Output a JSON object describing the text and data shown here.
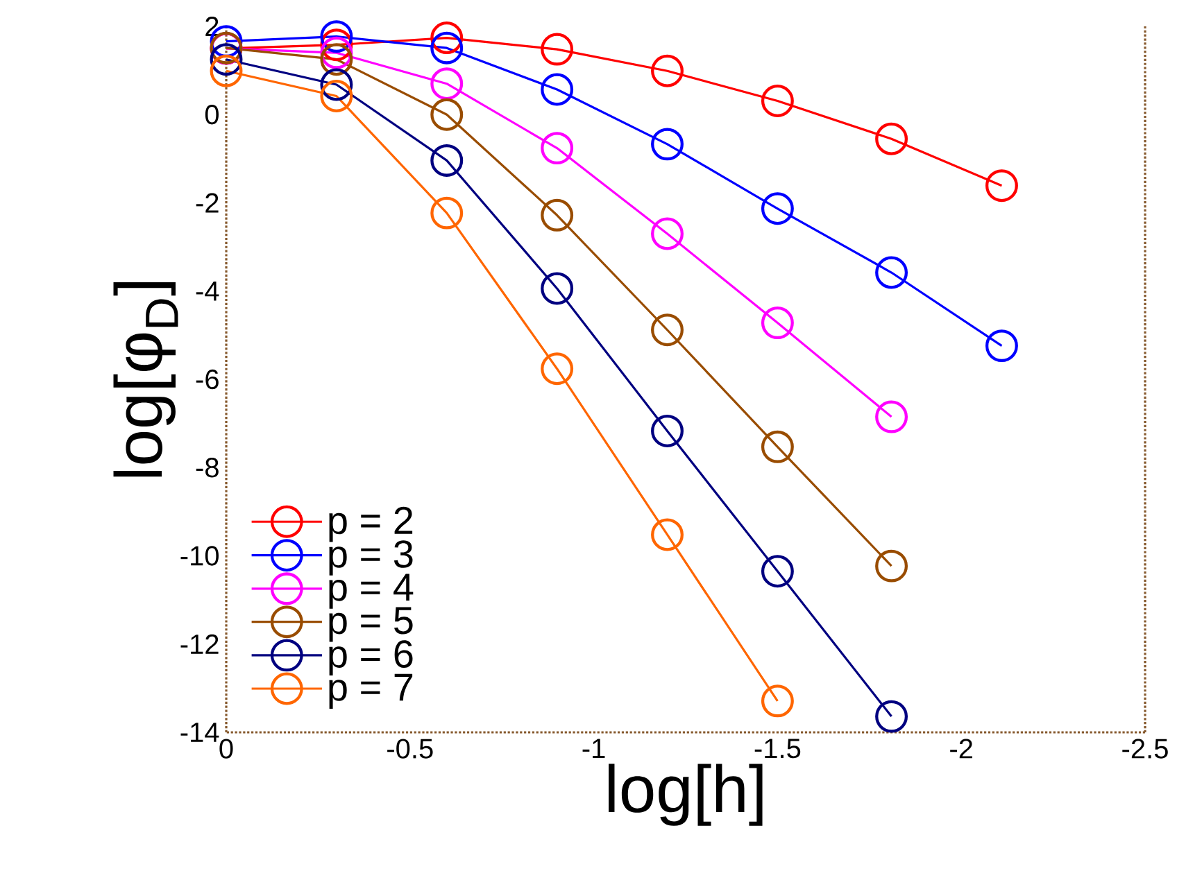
{
  "chart_data": {
    "type": "line",
    "xlabel": "log[h]",
    "ylabel": "log[φ$_{D}$]",
    "xlim": [
      0,
      -2.5
    ],
    "ylim": [
      -14,
      2
    ],
    "xticks": [
      0,
      -0.5,
      -1,
      -1.5,
      -2,
      -2.5
    ],
    "yticks": [
      2,
      0,
      -2,
      -4,
      -6,
      -8,
      -10,
      -12,
      -14
    ],
    "x": [
      0,
      -0.3,
      -0.6,
      -0.9,
      -1.2,
      -1.5,
      -1.81,
      -2.11
    ],
    "marker": "circle",
    "line_style": "solid",
    "grid": false,
    "legend": "bottom left",
    "series": [
      {
        "name": "p = 2",
        "color": "#ff0000",
        "values": [
          1.5,
          1.58,
          1.74,
          1.48,
          0.99,
          0.31,
          -0.55,
          -1.61
        ]
      },
      {
        "name": "p = 3",
        "color": "#0000ff",
        "values": [
          1.66,
          1.77,
          1.51,
          0.57,
          -0.67,
          -2.13,
          -3.58,
          -5.24
        ]
      },
      {
        "name": "p = 4",
        "color": "#ff00ff",
        "values": [
          1.5,
          1.4,
          0.7,
          -0.76,
          -2.7,
          -4.72,
          -6.85,
          null
        ]
      },
      {
        "name": "p = 5",
        "color": "#994c00",
        "values": [
          1.51,
          1.25,
          0.0,
          -2.28,
          -4.88,
          -7.53,
          -10.23,
          null
        ]
      },
      {
        "name": "p = 6",
        "color": "#000080",
        "values": [
          1.25,
          0.68,
          -1.04,
          -3.94,
          -7.17,
          -10.35,
          -13.64,
          null
        ]
      },
      {
        "name": "p = 7",
        "color": "#ff6600",
        "values": [
          0.99,
          0.42,
          -2.23,
          -5.76,
          -9.52,
          -13.29,
          null,
          null
        ]
      }
    ]
  }
}
